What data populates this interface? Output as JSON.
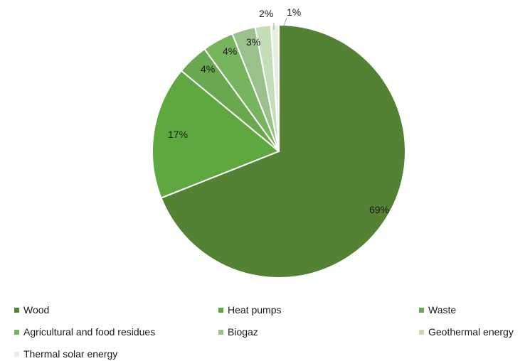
{
  "chart_data": {
    "type": "pie",
    "categories": [
      "Wood",
      "Heat pumps",
      "Waste",
      "Agricultural and food residues",
      "Biogaz",
      "Geothermal energy",
      "Thermal solar energy"
    ],
    "values": [
      69,
      17,
      4,
      4,
      3,
      2,
      1
    ],
    "data_labels": [
      "69%",
      "17%",
      "4%",
      "4%",
      "3%",
      "2%",
      "1%"
    ],
    "colors": [
      "#548235",
      "#5fa840",
      "#6aa84f",
      "#76b55e",
      "#9ac18a",
      "#c5dcb9",
      "#e6efe0"
    ],
    "start_angle": "top, clockwise",
    "legend_position": "bottom"
  }
}
